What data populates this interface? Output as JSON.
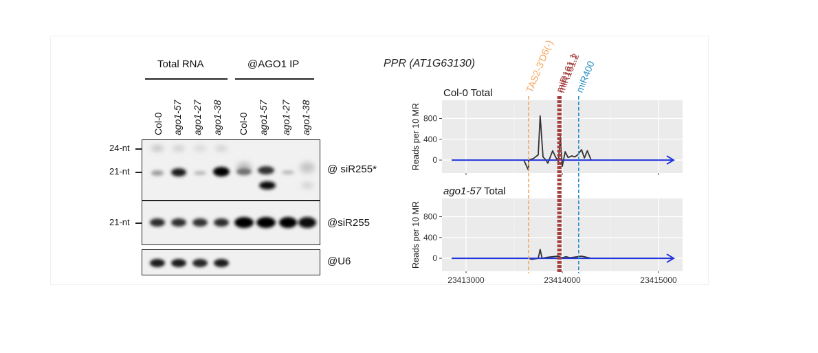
{
  "northern": {
    "groups": [
      {
        "label": "Total RNA"
      },
      {
        "label": "@AGO1 IP"
      }
    ],
    "lanes": [
      {
        "label": "Col-0",
        "italic": false
      },
      {
        "label": "ago1-57",
        "italic": true
      },
      {
        "label": "ago1-27",
        "italic": true
      },
      {
        "label": "ago1-38",
        "italic": true
      },
      {
        "label": "Col-0",
        "italic": false
      },
      {
        "label": "ago1-57",
        "italic": true
      },
      {
        "label": "ago1-27",
        "italic": true
      },
      {
        "label": "ago1-38",
        "italic": true
      }
    ],
    "size_markers": {
      "m24": "24-nt",
      "m21a": "21-nt",
      "m21b": "21-nt"
    },
    "probes": {
      "p1": "@ siR255*",
      "p2": "@siR255",
      "p3": "@U6"
    }
  },
  "chart_data": [
    {
      "type": "line",
      "title": "PPR (AT1G63130)",
      "panel_title": "Col-0 Total",
      "ylabel": "Reads per 10 MR",
      "yticks": [
        0,
        400,
        800
      ],
      "ylim": [
        -250,
        1150
      ],
      "xlim": [
        23412750,
        23415250
      ],
      "xticks": [
        23413000,
        23414000,
        23415000
      ],
      "grid": true,
      "background": "#ebebeb",
      "gene_arrow": {
        "from": 23412850,
        "to": 23415150,
        "color": "#2233dd"
      },
      "annotations": [
        {
          "label": "TAS2-3'D6(-)",
          "x": 23413650,
          "color": "#f5a75c"
        },
        {
          "label": "miR161.1",
          "x": 23413960,
          "color": "#a64141"
        },
        {
          "label": "miR161.2",
          "x": 23413980,
          "color": "#a64141"
        },
        {
          "label": "miR400",
          "x": 23414170,
          "color": "#2a8fc6"
        }
      ],
      "series": [
        {
          "x": [
            23413600,
            23413650,
            23413650,
            23413700,
            23413750,
            23413770,
            23413800,
            23413830,
            23413850,
            23413900,
            23413930,
            23413960,
            23413980,
            23414000,
            23414030,
            23414060,
            23414100,
            23414130,
            23414160,
            23414200,
            23414230,
            23414260,
            23414300
          ],
          "values": [
            0,
            -200,
            0,
            30,
            100,
            850,
            60,
            0,
            -60,
            180,
            60,
            -30,
            450,
            -120,
            160,
            50,
            80,
            60,
            100,
            200,
            40,
            180,
            0
          ]
        }
      ]
    },
    {
      "type": "line",
      "panel_title": "ago1-57 Total",
      "ylabel": "Reads per 10 MR",
      "yticks": [
        0,
        400,
        800
      ],
      "ylim": [
        -250,
        1150
      ],
      "xlim": [
        23412750,
        23415250
      ],
      "xticks": [
        23413000,
        23414000,
        23415000
      ],
      "xtick_labels": [
        "23413000",
        "23414000",
        "23415000"
      ],
      "grid": true,
      "background": "#ebebeb",
      "gene_arrow": {
        "from": 23412850,
        "to": 23415150,
        "color": "#2233dd"
      },
      "series": [
        {
          "x": [
            23413650,
            23413680,
            23413750,
            23413770,
            23413790,
            23413850,
            23413950,
            23414000,
            23414040,
            23414080,
            23414200,
            23414250,
            23414300
          ],
          "values": [
            0,
            -20,
            0,
            170,
            0,
            20,
            40,
            10,
            30,
            10,
            40,
            20,
            0
          ]
        }
      ]
    }
  ]
}
